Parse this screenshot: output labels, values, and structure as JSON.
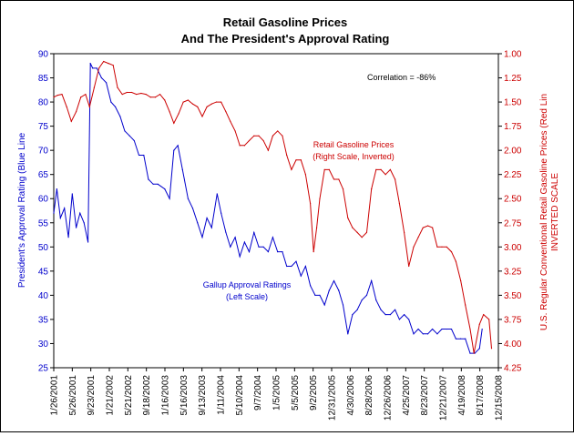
{
  "chart_data": {
    "type": "line",
    "title_line1": "Retail Gasoline Prices",
    "title_line2": "And The President's Approval Rating",
    "annotation": "Correlation = -86%",
    "left_axis": {
      "label": "President's Approval Rating (Blue Line",
      "min": 25,
      "max": 90,
      "step": 5,
      "ticks": [
        "25",
        "30",
        "35",
        "40",
        "45",
        "50",
        "55",
        "60",
        "65",
        "70",
        "75",
        "80",
        "85",
        "90"
      ]
    },
    "right_axis": {
      "label_line1": "U.S. Regular Conventional Retail Gasoline Prices (Red Lin",
      "label_line2": "INVERTED SCALE",
      "min": 1.0,
      "max": 4.25,
      "inverted": true,
      "ticks": [
        "1.00",
        "1.25",
        "1.50",
        "1.75",
        "2.00",
        "2.25",
        "2.50",
        "2.75",
        "3.00",
        "3.25",
        "3.50",
        "3.75",
        "4.00",
        "4.25"
      ]
    },
    "x_axis": {
      "start": "2001-01-26",
      "end": "2008-12-15",
      "tick_dates": [
        "2001-01-26",
        "2001-05-26",
        "2001-09-23",
        "2002-01-21",
        "2002-05-21",
        "2002-09-18",
        "2003-01-16",
        "2003-05-16",
        "2003-09-13",
        "2004-01-11",
        "2004-05-10",
        "2004-09-07",
        "2005-01-05",
        "2005-05-05",
        "2005-09-02",
        "2005-12-31",
        "2006-04-30",
        "2006-08-28",
        "2006-12-26",
        "2007-04-25",
        "2007-08-23",
        "2007-12-21",
        "2008-04-19",
        "2008-08-17",
        "2008-12-15"
      ],
      "tick_labels": [
        "1/26/2001",
        "5/26/2001",
        "9/23/2001",
        "1/21/2002",
        "5/21/2002",
        "9/18/2002",
        "1/16/2003",
        "5/16/2003",
        "9/13/2003",
        "1/11/2004",
        "5/10/2004",
        "9/7/2004",
        "1/5/2005",
        "5/5/2005",
        "9/2/2005",
        "12/31/2005",
        "4/30/2006",
        "8/28/2006",
        "12/26/2006",
        "4/25/2007",
        "8/23/2007",
        "12/21/2007",
        "4/19/2008",
        "8/17/2008",
        "12/15/2008"
      ]
    },
    "series": [
      {
        "name": "Gallup Approval Ratings",
        "label_line1": "Gallup Approval Ratings",
        "label_line2": "(Left Scale)",
        "axis": "left",
        "color": "#0000cc",
        "dates": [
          "2001-01-26",
          "2001-02-15",
          "2001-03-10",
          "2001-04-05",
          "2001-05-01",
          "2001-05-26",
          "2001-06-20",
          "2001-07-15",
          "2001-08-10",
          "2001-09-05",
          "2001-09-20",
          "2001-10-05",
          "2001-11-01",
          "2001-12-01",
          "2002-01-01",
          "2002-02-01",
          "2002-03-01",
          "2002-04-01",
          "2002-05-01",
          "2002-06-01",
          "2002-07-01",
          "2002-08-01",
          "2002-09-01",
          "2002-10-01",
          "2002-11-01",
          "2002-12-01",
          "2003-01-15",
          "2003-02-15",
          "2003-03-15",
          "2003-04-10",
          "2003-05-10",
          "2003-06-15",
          "2003-07-15",
          "2003-08-15",
          "2003-09-15",
          "2003-10-15",
          "2003-11-15",
          "2003-12-20",
          "2004-01-15",
          "2004-02-15",
          "2004-03-15",
          "2004-04-15",
          "2004-05-15",
          "2004-06-15",
          "2004-07-15",
          "2004-08-15",
          "2004-09-15",
          "2004-10-15",
          "2004-11-15",
          "2004-12-15",
          "2005-01-15",
          "2005-02-15",
          "2005-03-15",
          "2005-04-15",
          "2005-05-15",
          "2005-06-15",
          "2005-07-15",
          "2005-08-15",
          "2005-09-15",
          "2005-10-15",
          "2005-11-15",
          "2005-12-15",
          "2006-01-15",
          "2006-02-15",
          "2006-03-15",
          "2006-04-15",
          "2006-05-15",
          "2006-06-15",
          "2006-07-15",
          "2006-08-15",
          "2006-09-15",
          "2006-10-15",
          "2006-11-15",
          "2006-12-15",
          "2007-01-15",
          "2007-02-15",
          "2007-03-15",
          "2007-04-15",
          "2007-05-15",
          "2007-06-15",
          "2007-07-15",
          "2007-08-15",
          "2007-09-15",
          "2007-10-15",
          "2007-11-15",
          "2007-12-15",
          "2008-01-15",
          "2008-02-15",
          "2008-03-15",
          "2008-04-15",
          "2008-05-15",
          "2008-06-15",
          "2008-07-15",
          "2008-08-15",
          "2008-09-01"
        ],
        "values": [
          57,
          62,
          56,
          58,
          52,
          61,
          54,
          57,
          55,
          51,
          88,
          87,
          87,
          85,
          84,
          80,
          79,
          77,
          74,
          73,
          72,
          69,
          69,
          64,
          63,
          63,
          62,
          60,
          70,
          71,
          66,
          60,
          58,
          55,
          52,
          56,
          54,
          61,
          57,
          53,
          50,
          52,
          48,
          51,
          49,
          53,
          50,
          50,
          49,
          52,
          49,
          49,
          46,
          46,
          47,
          44,
          46,
          42,
          40,
          40,
          38,
          41,
          43,
          41,
          38,
          32,
          36,
          37,
          39,
          40,
          43,
          39,
          37,
          36,
          36,
          37,
          35,
          36,
          35,
          32,
          33,
          32,
          32,
          33,
          32,
          33,
          33,
          33,
          31,
          31,
          31,
          28,
          28,
          29,
          33
        ]
      },
      {
        "name": "Retail Gasoline Prices",
        "label_line1": "Retail Gasoline Prices",
        "label_line2": "(Right Scale, Inverted)",
        "axis": "right",
        "color": "#cc0000",
        "dates": [
          "2001-01-26",
          "2001-02-20",
          "2001-03-20",
          "2001-04-20",
          "2001-05-20",
          "2001-06-20",
          "2001-07-20",
          "2001-08-20",
          "2001-09-15",
          "2001-10-15",
          "2001-11-15",
          "2001-12-15",
          "2002-01-15",
          "2002-02-15",
          "2002-03-15",
          "2002-04-15",
          "2002-05-15",
          "2002-06-15",
          "2002-07-15",
          "2002-08-15",
          "2002-09-15",
          "2002-10-15",
          "2002-11-15",
          "2002-12-15",
          "2003-01-15",
          "2003-02-15",
          "2003-03-15",
          "2003-04-15",
          "2003-05-15",
          "2003-06-15",
          "2003-07-15",
          "2003-08-15",
          "2003-09-15",
          "2003-10-15",
          "2003-11-15",
          "2003-12-15",
          "2004-01-15",
          "2004-02-15",
          "2004-03-15",
          "2004-04-15",
          "2004-05-15",
          "2004-06-15",
          "2004-07-15",
          "2004-08-15",
          "2004-09-15",
          "2004-10-15",
          "2004-11-15",
          "2004-12-15",
          "2005-01-15",
          "2005-02-15",
          "2005-03-15",
          "2005-04-15",
          "2005-05-15",
          "2005-06-15",
          "2005-07-15",
          "2005-08-15",
          "2005-09-05",
          "2005-09-25",
          "2005-10-15",
          "2005-11-15",
          "2005-12-15",
          "2006-01-15",
          "2006-02-15",
          "2006-03-15",
          "2006-04-15",
          "2006-05-15",
          "2006-06-15",
          "2006-07-15",
          "2006-08-15",
          "2006-09-15",
          "2006-10-15",
          "2006-11-15",
          "2006-12-15",
          "2007-01-15",
          "2007-02-15",
          "2007-03-15",
          "2007-04-15",
          "2007-05-15",
          "2007-06-15",
          "2007-07-15",
          "2007-08-15",
          "2007-09-15",
          "2007-10-15",
          "2007-11-15",
          "2007-12-15",
          "2008-01-15",
          "2008-02-15",
          "2008-03-15",
          "2008-04-15",
          "2008-05-15",
          "2008-06-15",
          "2008-07-10",
          "2008-08-15",
          "2008-09-10",
          "2008-10-15",
          "2008-11-01"
        ],
        "values": [
          1.45,
          1.43,
          1.42,
          1.55,
          1.7,
          1.6,
          1.45,
          1.42,
          1.55,
          1.35,
          1.15,
          1.08,
          1.1,
          1.12,
          1.35,
          1.42,
          1.4,
          1.4,
          1.42,
          1.41,
          1.42,
          1.45,
          1.45,
          1.42,
          1.48,
          1.6,
          1.72,
          1.62,
          1.5,
          1.48,
          1.52,
          1.55,
          1.65,
          1.55,
          1.52,
          1.5,
          1.5,
          1.6,
          1.7,
          1.8,
          1.95,
          1.95,
          1.9,
          1.85,
          1.85,
          1.9,
          2.0,
          1.85,
          1.8,
          1.85,
          2.05,
          2.2,
          2.1,
          2.1,
          2.25,
          2.55,
          3.05,
          2.8,
          2.5,
          2.2,
          2.2,
          2.3,
          2.3,
          2.4,
          2.7,
          2.8,
          2.85,
          2.9,
          2.85,
          2.4,
          2.2,
          2.2,
          2.25,
          2.2,
          2.3,
          2.55,
          2.85,
          3.2,
          3.0,
          2.9,
          2.8,
          2.78,
          2.8,
          3.0,
          3.0,
          3.0,
          3.05,
          3.15,
          3.35,
          3.6,
          3.85,
          4.1,
          3.8,
          3.7,
          3.75,
          4.05
        ]
      }
    ],
    "grid": false,
    "legend": "inline labels"
  }
}
